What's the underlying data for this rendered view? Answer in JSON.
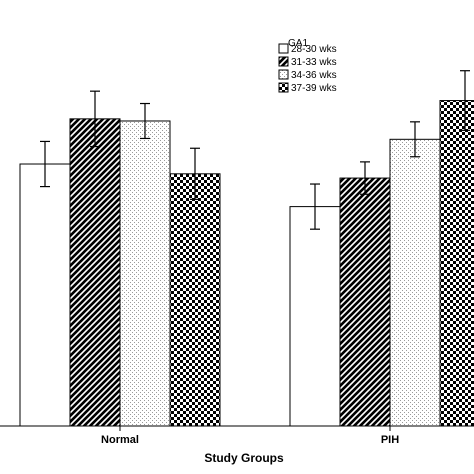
{
  "chart_data": {
    "type": "bar",
    "title": "",
    "xlabel": "Study Groups",
    "ylabel": "",
    "categories": [
      "Normal",
      "PIH"
    ],
    "legend": {
      "title": "GA1",
      "placement": "top-center"
    },
    "grid": false,
    "ylim": [
      0,
      100
    ],
    "series": [
      {
        "name": "28-30 wks",
        "pattern": "solid-white",
        "values": [
          61.5,
          51.5
        ],
        "error": [
          5.3,
          5.3
        ]
      },
      {
        "name": "31-33 wks",
        "pattern": "diagonal-stripes",
        "values": [
          72.1,
          58.2
        ],
        "error": [
          6.5,
          3.8
        ]
      },
      {
        "name": "34-36 wks",
        "pattern": "dotted",
        "values": [
          71.6,
          67.3
        ],
        "error": [
          4.1,
          4.1
        ]
      },
      {
        "name": "37-39 wks",
        "pattern": "checkerboard",
        "values": [
          59.2,
          76.4
        ],
        "error": [
          6.0,
          7.0
        ]
      }
    ]
  }
}
